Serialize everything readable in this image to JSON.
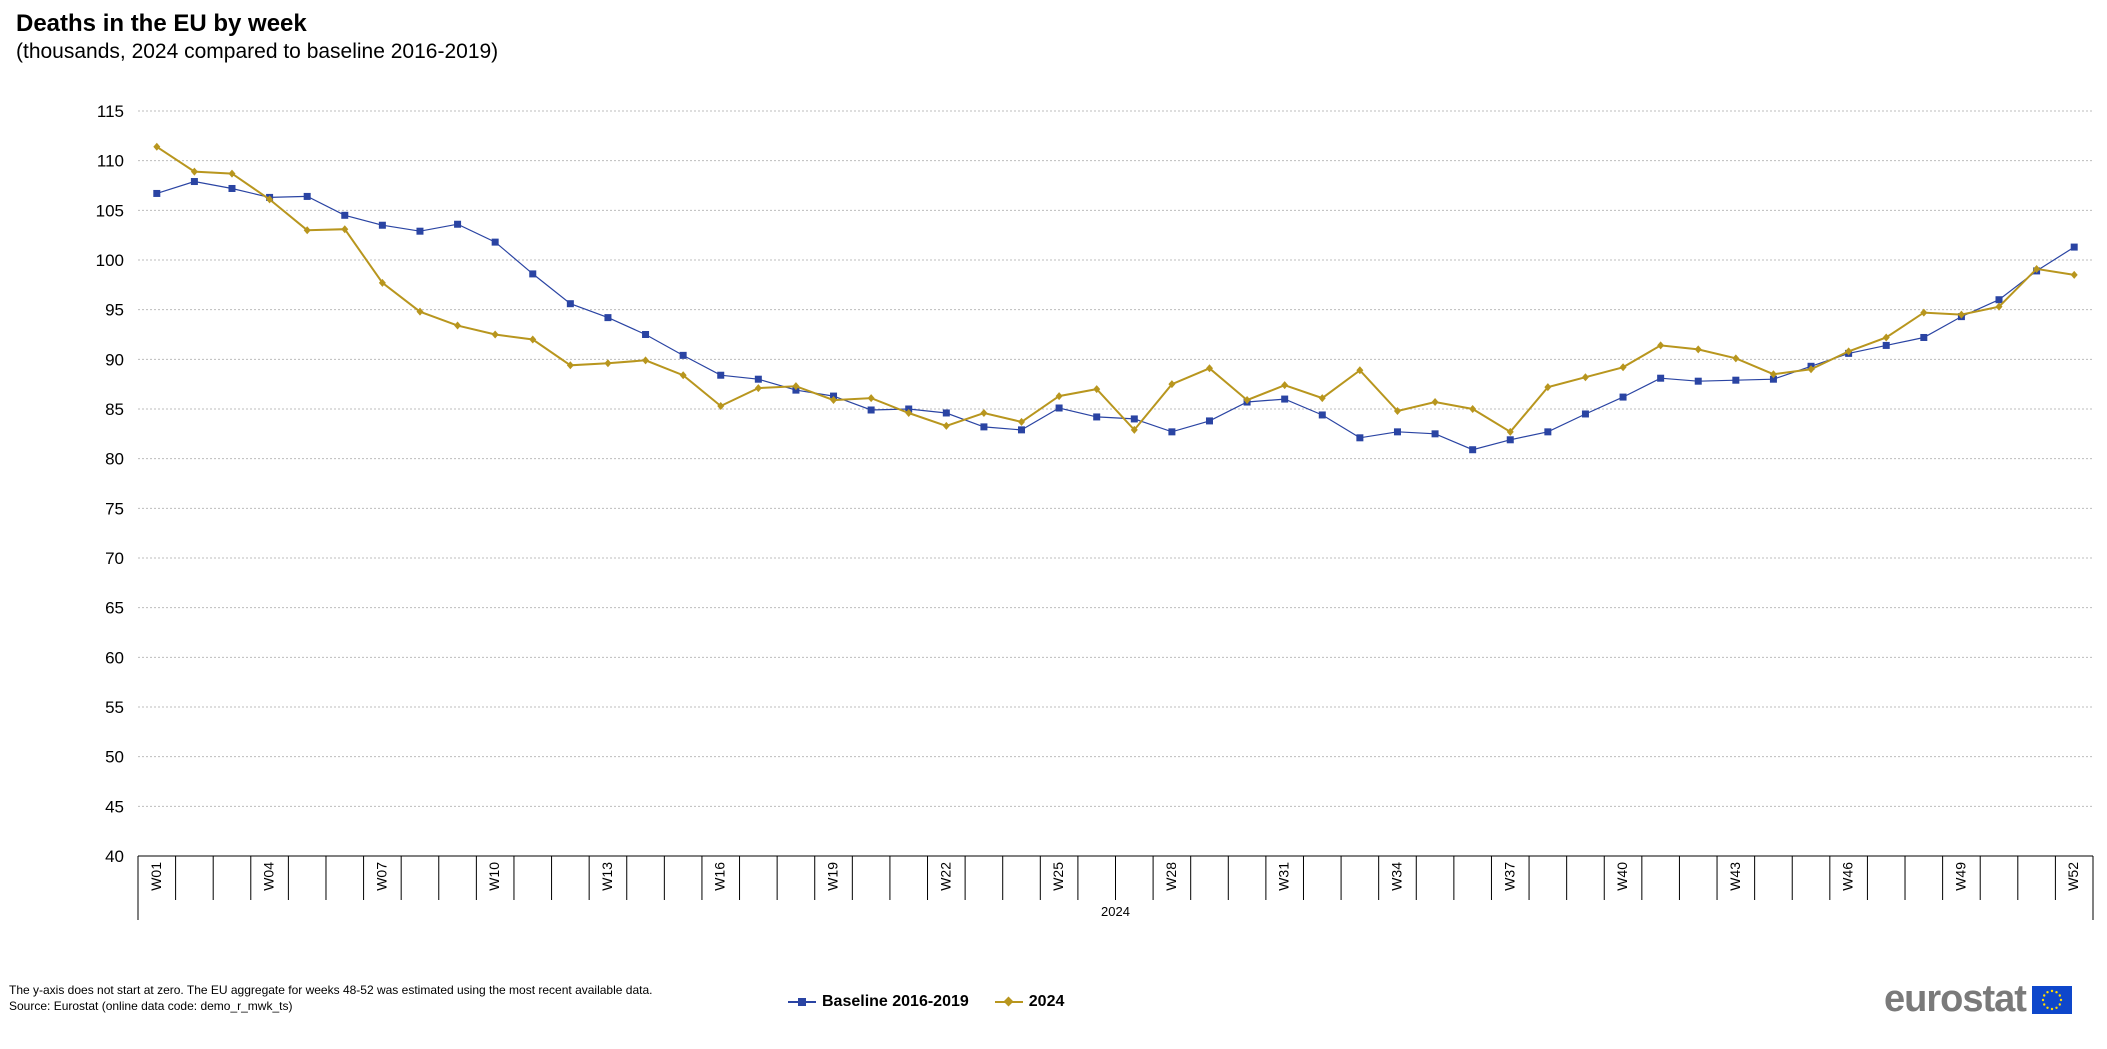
{
  "title": "Deaths in the EU by week",
  "subtitle": "(thousands, 2024 compared to baseline 2016-2019)",
  "footnote": {
    "line1": "The y-axis does not start at zero. The EU aggregate for weeks 48-52 was estimated using the most recent available data.",
    "line2": "Source: Eurostat (online data code: demo_r_mwk_ts)"
  },
  "logo": {
    "text": "eurostat",
    "flag_color": "#0e47cb",
    "star_color": "#ffdd00"
  },
  "colors": {
    "baseline": "#2a44a3",
    "y2024": "#b8961e",
    "grid": "#bdbdbd"
  },
  "chart_data": {
    "type": "line",
    "title": "Deaths in the EU by week",
    "subtitle": "(thousands, 2024 compared to baseline 2016-2019)",
    "x_group_label": "2024",
    "x": [
      "W01",
      "W02",
      "W03",
      "W04",
      "W05",
      "W06",
      "W07",
      "W08",
      "W09",
      "W10",
      "W11",
      "W12",
      "W13",
      "W14",
      "W15",
      "W16",
      "W17",
      "W18",
      "W19",
      "W20",
      "W21",
      "W22",
      "W23",
      "W24",
      "W25",
      "W26",
      "W27",
      "W28",
      "W29",
      "W30",
      "W31",
      "W32",
      "W33",
      "W34",
      "W35",
      "W36",
      "W37",
      "W38",
      "W39",
      "W40",
      "W41",
      "W42",
      "W43",
      "W44",
      "W45",
      "W46",
      "W47",
      "W48",
      "W49",
      "W50",
      "W51",
      "W52"
    ],
    "x_tick_labels": [
      "W01",
      "W04",
      "W07",
      "W10",
      "W13",
      "W16",
      "W19",
      "W22",
      "W25",
      "W28",
      "W31",
      "W34",
      "W37",
      "W40",
      "W43",
      "W46",
      "W49",
      "W52"
    ],
    "ylim": [
      40,
      115
    ],
    "y_ticks": [
      40,
      45,
      50,
      55,
      60,
      65,
      70,
      75,
      80,
      85,
      90,
      95,
      100,
      105,
      110,
      115
    ],
    "grid": true,
    "legend_position": "bottom-center",
    "series": [
      {
        "name": "Baseline 2016-2019",
        "marker": "square",
        "values": [
          106.7,
          107.9,
          107.2,
          106.3,
          106.4,
          104.5,
          103.5,
          102.9,
          103.6,
          101.8,
          98.6,
          95.6,
          94.2,
          92.5,
          90.4,
          88.4,
          88.0,
          86.9,
          86.3,
          84.9,
          85.0,
          84.6,
          83.2,
          82.9,
          85.1,
          84.2,
          84.0,
          82.7,
          83.8,
          85.7,
          86.0,
          84.4,
          82.1,
          82.7,
          82.5,
          80.9,
          81.9,
          82.7,
          84.5,
          86.2,
          88.1,
          87.8,
          87.9,
          88.0,
          89.3,
          90.6,
          91.4,
          92.2,
          94.3,
          96.0,
          98.9,
          101.3
        ]
      },
      {
        "name": "2024",
        "marker": "diamond",
        "values": [
          111.4,
          108.9,
          108.7,
          106.1,
          103.0,
          103.1,
          97.7,
          94.8,
          93.4,
          92.5,
          92.0,
          89.4,
          89.6,
          89.9,
          88.4,
          85.3,
          87.1,
          87.3,
          85.9,
          86.1,
          84.6,
          83.3,
          84.6,
          83.7,
          86.3,
          87.0,
          82.9,
          87.5,
          89.1,
          85.9,
          87.4,
          86.1,
          88.9,
          84.8,
          85.7,
          85.0,
          82.7,
          87.2,
          88.2,
          89.2,
          91.4,
          91.0,
          90.1,
          88.5,
          89.0,
          90.8,
          92.2,
          94.7,
          94.5,
          95.3,
          99.1,
          98.5
        ]
      }
    ]
  }
}
